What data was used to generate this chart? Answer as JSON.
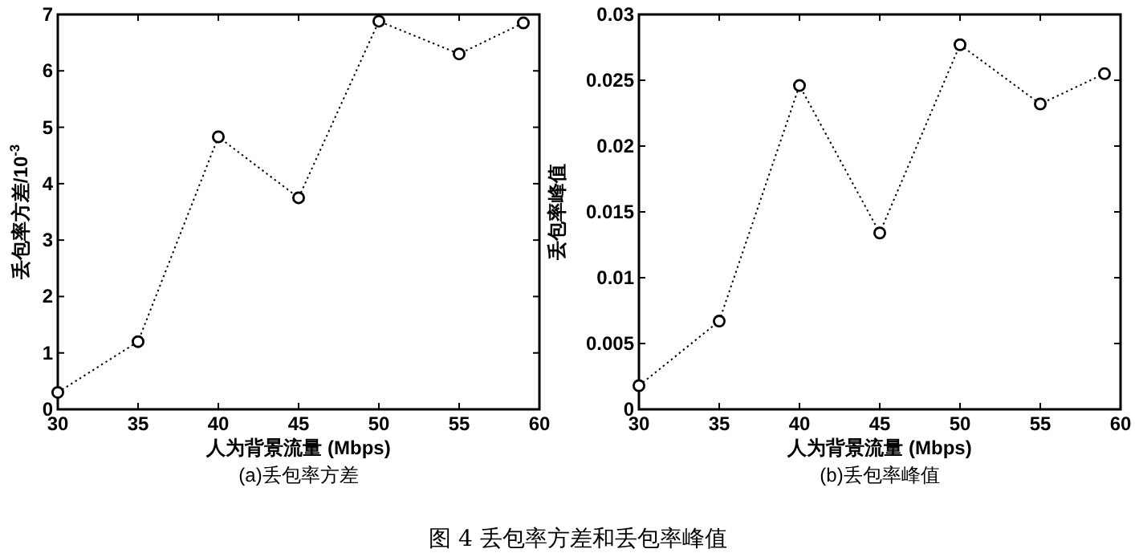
{
  "chart_data": [
    {
      "type": "line",
      "title": "(a)丢包率方差",
      "xlabel": "人为背景流量 (Mbps)",
      "ylabel": "丢包率方差/10$^{-3}$",
      "x": [
        30,
        35,
        40,
        45,
        50,
        55,
        59
      ],
      "series": [
        {
          "color": "#000000",
          "values": [
            0.3,
            1.2,
            4.83,
            3.75,
            6.88,
            6.3,
            6.85
          ]
        }
      ],
      "xlim": [
        30,
        60
      ],
      "xticks": [
        30,
        35,
        40,
        45,
        50,
        55,
        60
      ],
      "ylim": [
        0,
        7
      ],
      "yticks": [
        0,
        1,
        2,
        3,
        4,
        5,
        6,
        7
      ],
      "marker": "circle",
      "line_style": "dotted",
      "annotations": [
        "图 4  丢包率方差和丢包率峰值"
      ]
    },
    {
      "type": "line",
      "title": "(b)丢包率峰值",
      "xlabel": "人为背景流量 (Mbps)",
      "ylabel": "丢包率峰值",
      "x": [
        30,
        35,
        40,
        45,
        50,
        55,
        59
      ],
      "series": [
        {
          "color": "#000000",
          "values": [
            0.0018,
            0.0067,
            0.0246,
            0.0134,
            0.0277,
            0.0232,
            0.0255
          ]
        }
      ],
      "xlim": [
        30,
        60
      ],
      "xticks": [
        30,
        35,
        40,
        45,
        50,
        55,
        60
      ],
      "ylim": [
        0,
        0.03
      ],
      "yticks": [
        0,
        0.005,
        0.01,
        0.015,
        0.02,
        0.025,
        0.03
      ],
      "marker": "circle",
      "line_style": "dotted"
    }
  ]
}
